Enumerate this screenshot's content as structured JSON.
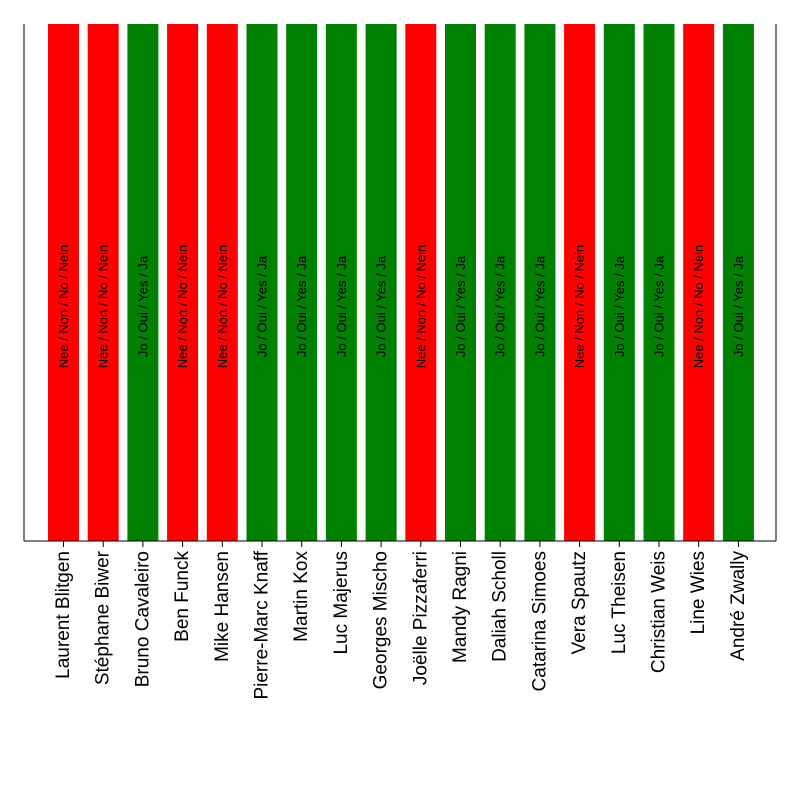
{
  "chart_data": {
    "type": "bar",
    "categories": [
      "Laurent Blitgen",
      "Stéphane Biwer",
      "Bruno Cavaleiro",
      "Ben Funck",
      "Mike Hansen",
      "Pierre-Marc Knaff",
      "Martin Kox",
      "Luc Majerus",
      "Georges Mischo",
      "Joëlle Pizzaferri",
      "Mandy Ragni",
      "Daliah Scholl",
      "Catarina Simoes",
      "Vera Spautz",
      "Luc Theisen",
      "Christian Weis",
      "Line Wies",
      "André Zwally"
    ],
    "votes": [
      "no",
      "no",
      "yes",
      "no",
      "no",
      "yes",
      "yes",
      "yes",
      "yes",
      "no",
      "yes",
      "yes",
      "yes",
      "no",
      "yes",
      "yes",
      "no",
      "yes"
    ],
    "values": [
      1,
      1,
      1,
      1,
      1,
      1,
      1,
      1,
      1,
      1,
      1,
      1,
      1,
      1,
      1,
      1,
      1,
      1
    ],
    "labels": {
      "yes": "Jo / Oui / Yes / Ja",
      "no": "Nee / Non / No / Nein"
    },
    "colors": {
      "yes": "#008000",
      "no": "#ff0000"
    },
    "ylim": [
      0,
      1
    ],
    "grid": false
  }
}
